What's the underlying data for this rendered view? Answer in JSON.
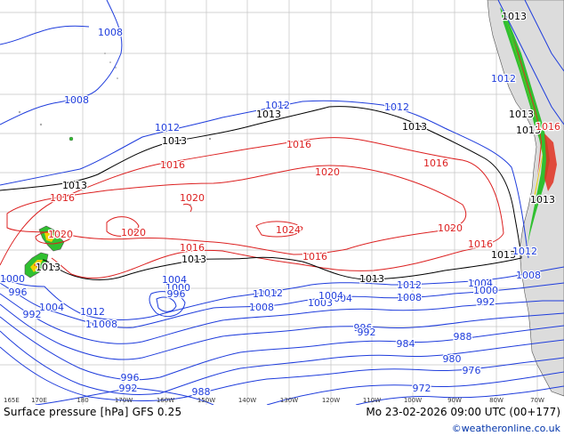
{
  "caption": "Surface pressure [hPa] GFS 0.25",
  "valid_time": "Mo 23-02-2026 09:00 UTC (00+177)",
  "credit": "©weatheronline.co.uk",
  "colors": {
    "low": "#1e3cdc",
    "mid": "#000000",
    "high": "#dc2020",
    "grid": "#bbbbbb",
    "land": "#dcdcdc",
    "terrain_high": "#e03020",
    "terrain_mid": "#f0d000",
    "terrain_low": "#30c030"
  },
  "longitude_ticks": [
    "165E",
    "170E",
    "180",
    "170W",
    "160W",
    "150W",
    "140W",
    "130W",
    "120W",
    "110W",
    "100W",
    "90W",
    "80W",
    "70W"
  ],
  "isobar_labels": [
    {
      "text": "1008",
      "color": "low"
    },
    {
      "text": "1008",
      "color": "low"
    },
    {
      "text": "1012",
      "color": "low"
    },
    {
      "text": "1012",
      "color": "low"
    },
    {
      "text": "1012",
      "color": "low"
    },
    {
      "text": "1013",
      "color": "mid"
    },
    {
      "text": "1013",
      "color": "mid"
    },
    {
      "text": "1013",
      "color": "mid"
    },
    {
      "text": "1013",
      "color": "mid"
    },
    {
      "text": "1016",
      "color": "high"
    },
    {
      "text": "1016",
      "color": "high"
    },
    {
      "text": "1016",
      "color": "high"
    },
    {
      "text": "1020",
      "color": "high"
    },
    {
      "text": "1020",
      "color": "high"
    },
    {
      "text": "1016",
      "color": "high"
    },
    {
      "text": "1020",
      "color": "high"
    },
    {
      "text": "1020",
      "color": "high"
    },
    {
      "text": "1024",
      "color": "high"
    },
    {
      "text": "1020",
      "color": "high"
    },
    {
      "text": "1016",
      "color": "high"
    },
    {
      "text": "1016",
      "color": "high"
    },
    {
      "text": "1016",
      "color": "high"
    },
    {
      "text": "1013",
      "color": "mid"
    },
    {
      "text": "1013",
      "color": "mid"
    },
    {
      "text": "1013",
      "color": "mid"
    },
    {
      "text": "1013",
      "color": "mid"
    },
    {
      "text": "1012",
      "color": "low"
    },
    {
      "text": "1012",
      "color": "low"
    },
    {
      "text": "1012",
      "color": "low"
    },
    {
      "text": "1008",
      "color": "low"
    },
    {
      "text": "1008",
      "color": "low"
    },
    {
      "text": "1008",
      "color": "low"
    },
    {
      "text": "1004",
      "color": "low"
    },
    {
      "text": "1004",
      "color": "low"
    },
    {
      "text": "1004",
      "color": "low"
    },
    {
      "text": "1000",
      "color": "low"
    },
    {
      "text": "1000",
      "color": "low"
    },
    {
      "text": "996",
      "color": "low"
    },
    {
      "text": "996",
      "color": "low"
    },
    {
      "text": "996",
      "color": "low"
    },
    {
      "text": "996",
      "color": "low"
    },
    {
      "text": "992",
      "color": "low"
    },
    {
      "text": "992",
      "color": "low"
    },
    {
      "text": "992",
      "color": "low"
    },
    {
      "text": "992",
      "color": "low"
    },
    {
      "text": "988",
      "color": "low"
    },
    {
      "text": "988",
      "color": "low"
    },
    {
      "text": "984",
      "color": "low"
    },
    {
      "text": "980",
      "color": "low"
    },
    {
      "text": "976",
      "color": "low"
    },
    {
      "text": "972",
      "color": "low"
    },
    {
      "text": "1004",
      "color": "low"
    },
    {
      "text": "1008",
      "color": "low"
    },
    {
      "text": "1012",
      "color": "low"
    },
    {
      "text": "1013",
      "color": "mid"
    },
    {
      "text": "1013",
      "color": "mid"
    },
    {
      "text": "1013",
      "color": "mid"
    },
    {
      "text": "1013",
      "color": "mid"
    },
    {
      "text": "1016",
      "color": "high"
    },
    {
      "text": "1012",
      "color": "low"
    },
    {
      "text": "1008",
      "color": "low"
    },
    {
      "text": "1000",
      "color": "low"
    },
    {
      "text": "1012",
      "color": "low"
    },
    {
      "text": "1003",
      "color": "low"
    },
    {
      "text": "1004",
      "color": "low"
    }
  ]
}
